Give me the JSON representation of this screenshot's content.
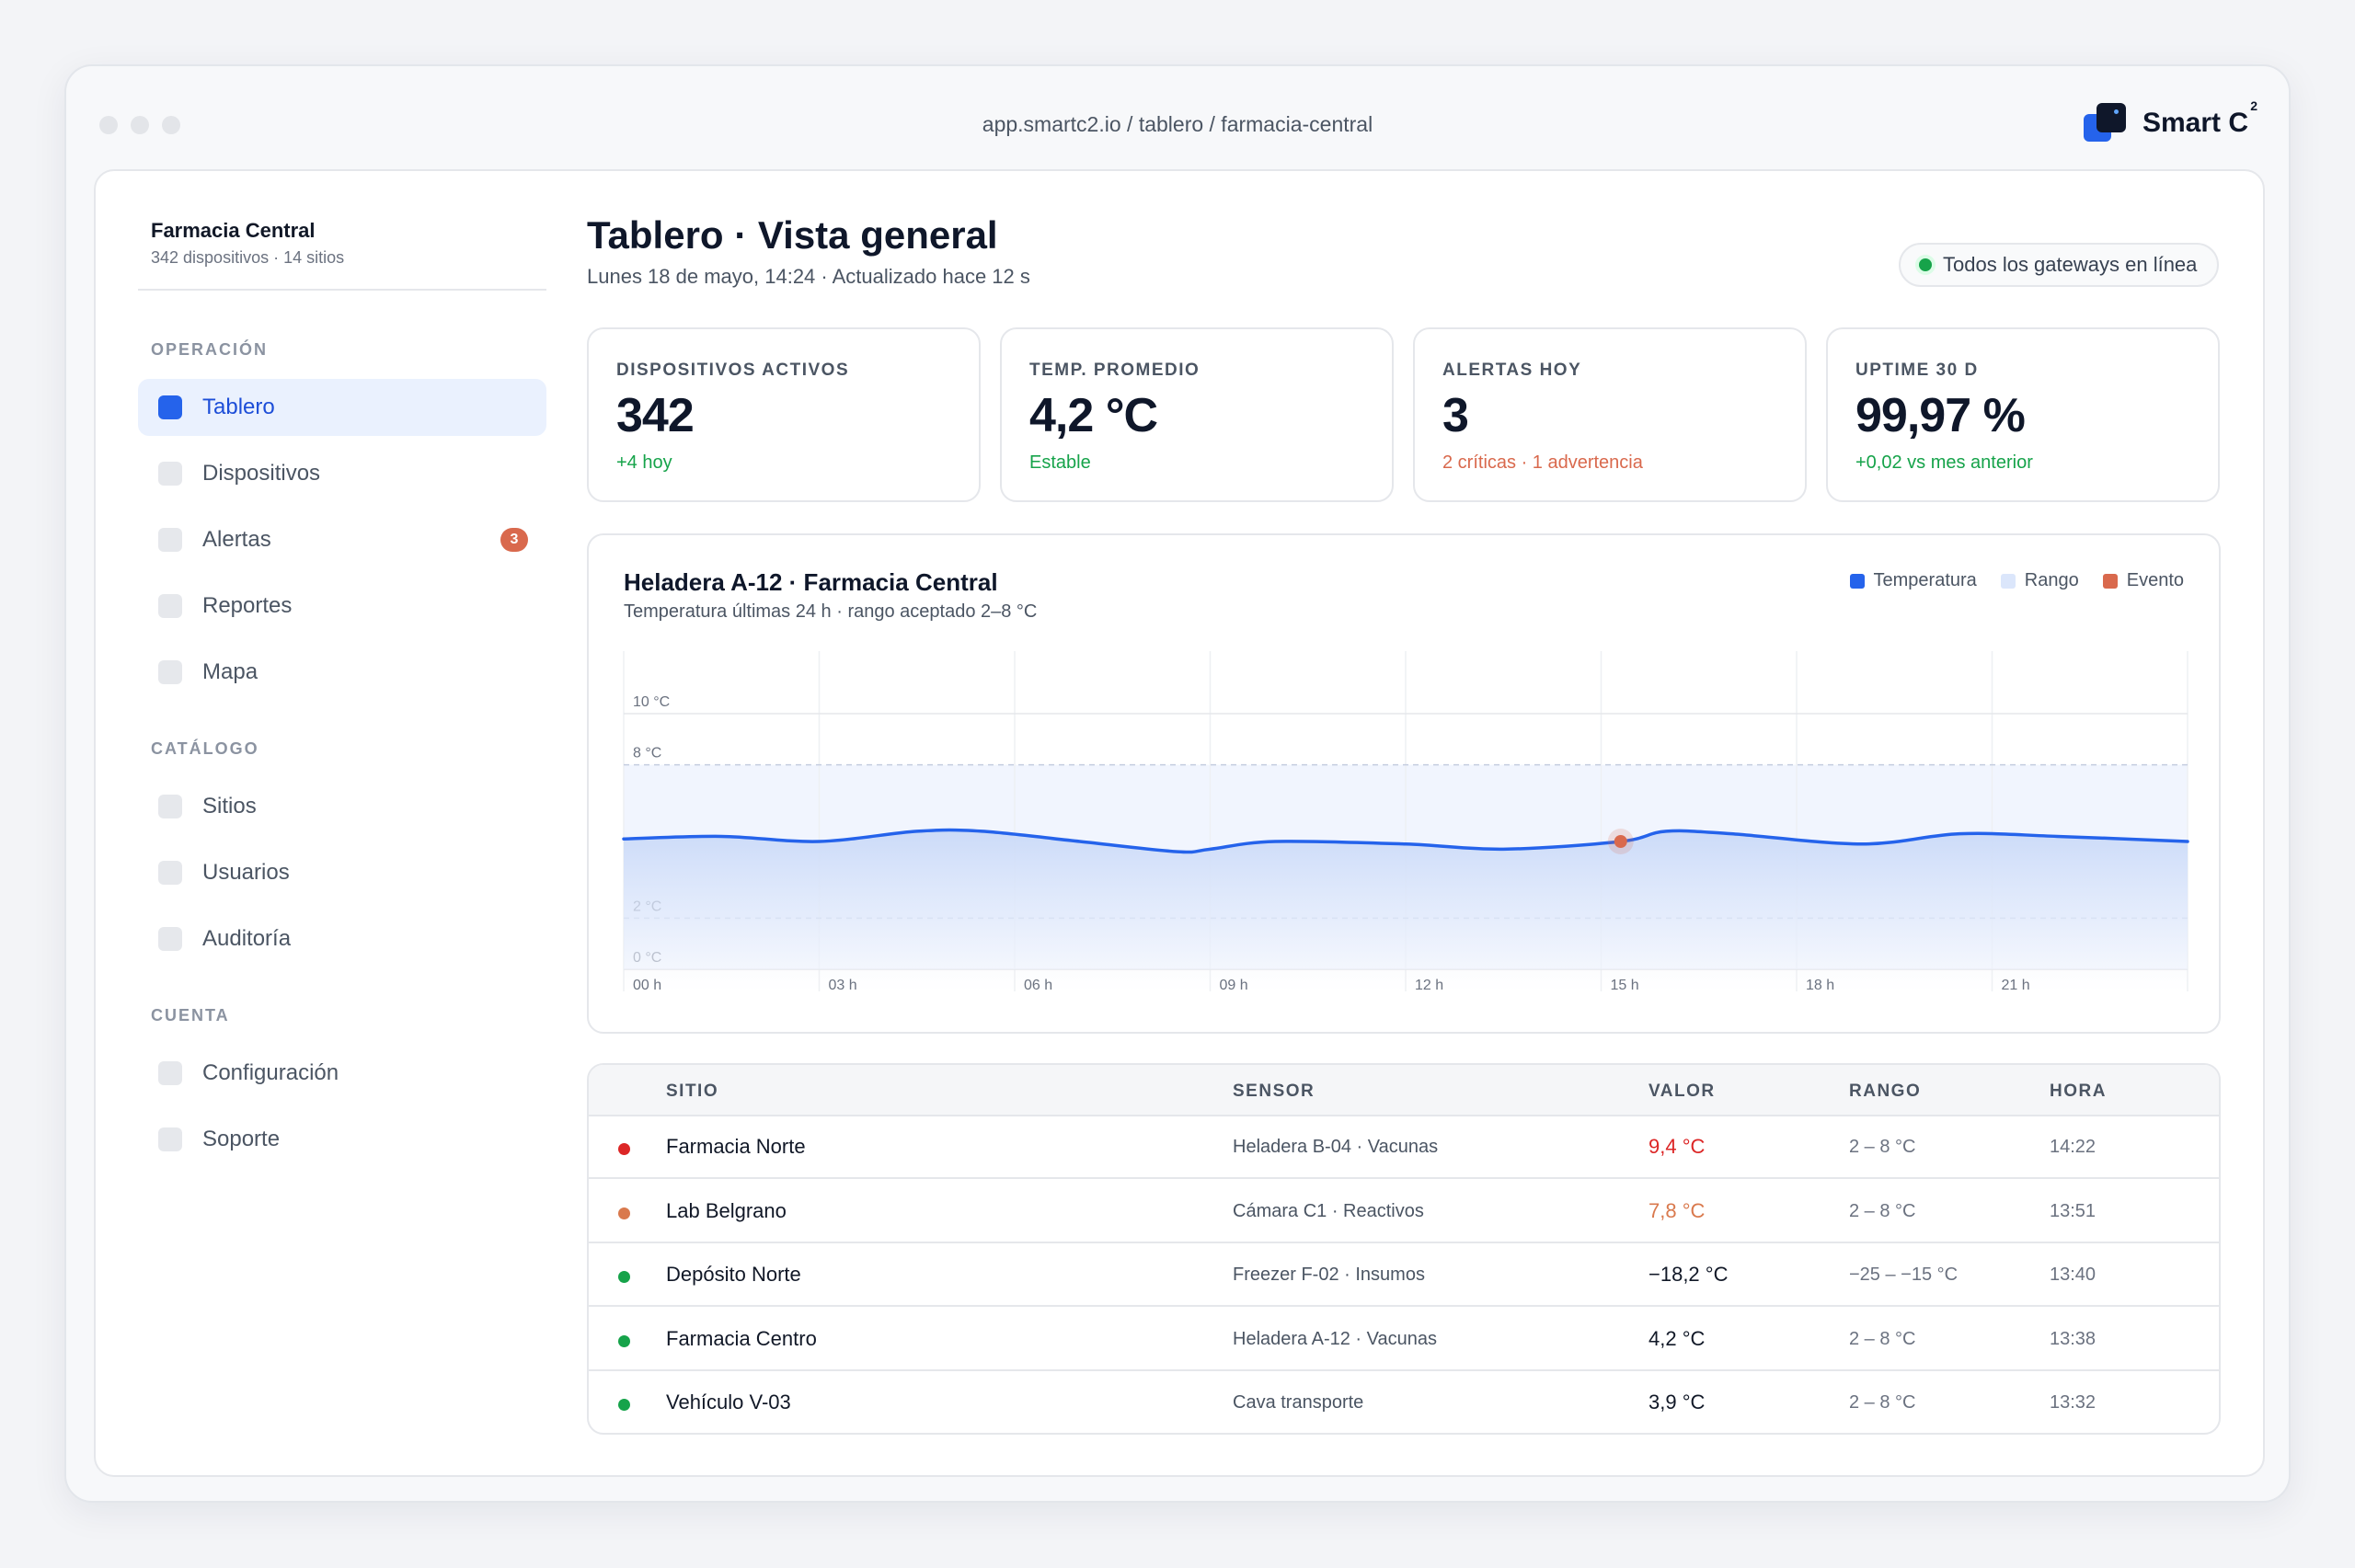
{
  "window": {
    "url": "app.smartc2.io / tablero / farmacia-central",
    "brand": "Smart C",
    "brand_sup": "2"
  },
  "sidebar": {
    "org_name": "Farmacia Central",
    "org_sub": "342 dispositivos · 14 sitios",
    "sections": [
      {
        "label": "OPERACIÓN"
      },
      {
        "label": "CATÁLOGO"
      },
      {
        "label": "CUENTA"
      }
    ],
    "items": [
      {
        "label": "Tablero",
        "active": true
      },
      {
        "label": "Dispositivos"
      },
      {
        "label": "Alertas",
        "badge": "3"
      },
      {
        "label": "Reportes"
      },
      {
        "label": "Mapa"
      },
      {
        "label": "Sitios"
      },
      {
        "label": "Usuarios"
      },
      {
        "label": "Auditoría"
      },
      {
        "label": "Configuración"
      },
      {
        "label": "Soporte"
      }
    ]
  },
  "header": {
    "title": "Tablero · Vista general",
    "subtitle": "Lunes 18 de mayo, 14:24 · Actualizado hace 12 s",
    "status": "Todos los gateways en línea"
  },
  "kpis": [
    {
      "label": "DISPOSITIVOS ACTIVOS",
      "value": "342",
      "note": "+4 hoy",
      "note_color": "#16a34a"
    },
    {
      "label": "TEMP. PROMEDIO",
      "value": "4,2 °C",
      "note": "Estable",
      "note_color": "#16a34a"
    },
    {
      "label": "ALERTAS HOY",
      "value": "3",
      "note": "2 críticas · 1 advertencia",
      "note_color": "#d9694d"
    },
    {
      "label": "UPTIME 30 D",
      "value": "99,97 %",
      "note": "+0,02 vs mes anterior",
      "note_color": "#16a34a"
    }
  ],
  "chart": {
    "title": "Heladera A-12 · Farmacia Central",
    "subtitle": "Temperatura últimas 24 h · rango aceptado 2–8 °C",
    "legend": [
      {
        "label": "Temperatura",
        "color": "#2563eb"
      },
      {
        "label": "Rango",
        "color": "#dbe6fb"
      },
      {
        "label": "Evento",
        "color": "#d9694d"
      }
    ]
  },
  "chart_data": {
    "type": "area",
    "title": "Heladera A-12 · Farmacia Central",
    "subtitle": "Temperatura últimas 24 h · rango aceptado 2–8 °C",
    "x_ticks": [
      "00 h",
      "03 h",
      "06 h",
      "09 h",
      "12 h",
      "15 h",
      "18 h",
      "21 h"
    ],
    "y_ticks": [
      {
        "value": 10,
        "label": "10 °C"
      },
      {
        "value": 8,
        "label": "8 °C"
      },
      {
        "value": 2,
        "label": "2 °C"
      },
      {
        "value": 0,
        "label": "0 °C"
      }
    ],
    "ylim": [
      0,
      10
    ],
    "xlim": [
      0,
      24
    ],
    "accepted_range": [
      2,
      8
    ],
    "series": [
      {
        "name": "Temperatura",
        "x": [
          0,
          1.5,
          3,
          4.5,
          5.5,
          7,
          8.5,
          9,
          10,
          12,
          13.5,
          15.3,
          16,
          17,
          19,
          20.5,
          22,
          24
        ],
        "y": [
          5.1,
          5.2,
          5.0,
          5.4,
          5.4,
          5.0,
          4.6,
          4.7,
          5.0,
          4.9,
          4.7,
          5.0,
          5.4,
          5.3,
          4.9,
          5.3,
          5.2,
          5.0
        ]
      }
    ],
    "events": [
      {
        "x": 15.3,
        "y": 5.0,
        "name": "Evento"
      }
    ]
  },
  "table": {
    "headers": [
      "SITIO",
      "SENSOR",
      "VALOR",
      "RANGO",
      "HORA"
    ],
    "rows": [
      {
        "status_color": "#dc2626",
        "site": "Farmacia Norte",
        "sensor": "Heladera B-04 · Vacunas",
        "value": "9,4 °C",
        "value_color": "#dc2626",
        "range": "2 – 8 °C",
        "time": "14:22"
      },
      {
        "status_color": "#d9794d",
        "site": "Lab Belgrano",
        "sensor": "Cámara C1 · Reactivos",
        "value": "7,8 °C",
        "value_color": "#d9794d",
        "range": "2 – 8 °C",
        "time": "13:51"
      },
      {
        "status_color": "#16a34a",
        "site": "Depósito Norte",
        "sensor": "Freezer F-02 · Insumos",
        "value": "−18,2 °C",
        "value_color": "#111827",
        "range": "−25 – −15 °C",
        "time": "13:40"
      },
      {
        "status_color": "#16a34a",
        "site": "Farmacia Centro",
        "sensor": "Heladera A-12 · Vacunas",
        "value": "4,2 °C",
        "value_color": "#111827",
        "range": "2 – 8 °C",
        "time": "13:38"
      },
      {
        "status_color": "#16a34a",
        "site": "Vehículo V-03",
        "sensor": "Cava transporte",
        "value": "3,9 °C",
        "value_color": "#111827",
        "range": "2 – 8 °C",
        "time": "13:32"
      }
    ]
  }
}
